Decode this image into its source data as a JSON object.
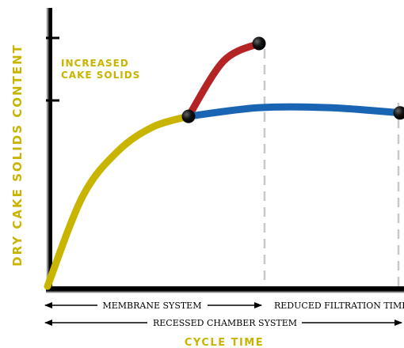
{
  "chart_data": {
    "type": "line",
    "xlabel": "CYCLE TIME",
    "ylabel": "DRY CAKE SOLIDS CONTENT",
    "annotation": "INCREASED\nCAKE SOLIDS",
    "colors": {
      "axis": "#000000",
      "label": "#c9b400",
      "recessed_chamber_curve": "#c9b400",
      "membrane_squeeze_curve": "#b52424",
      "plateau_curve": "#1a64b4",
      "marker": "#111111",
      "dashed": "#c8c8c8"
    },
    "series": [
      {
        "values": [
          [
            0,
            0.0
          ],
          [
            10,
            0.52
          ],
          [
            20,
            0.78
          ],
          [
            30,
            0.92
          ],
          [
            40,
            0.98
          ]
        ]
      },
      {
        "values": [
          [
            40,
            0.98
          ],
          [
            50,
            1.3
          ],
          [
            60,
            1.4
          ]
        ]
      },
      {
        "values": [
          [
            40,
            0.98
          ],
          [
            60,
            1.03
          ],
          [
            80,
            1.03
          ],
          [
            100,
            1.0
          ]
        ]
      }
    ],
    "ranges": [
      {
        "label": "MEMBRANE SYSTEM"
      },
      {
        "label": "REDUCED FILTRATION TIME"
      },
      {
        "label": "RECESSED CHAMBER SYSTEM"
      }
    ]
  }
}
